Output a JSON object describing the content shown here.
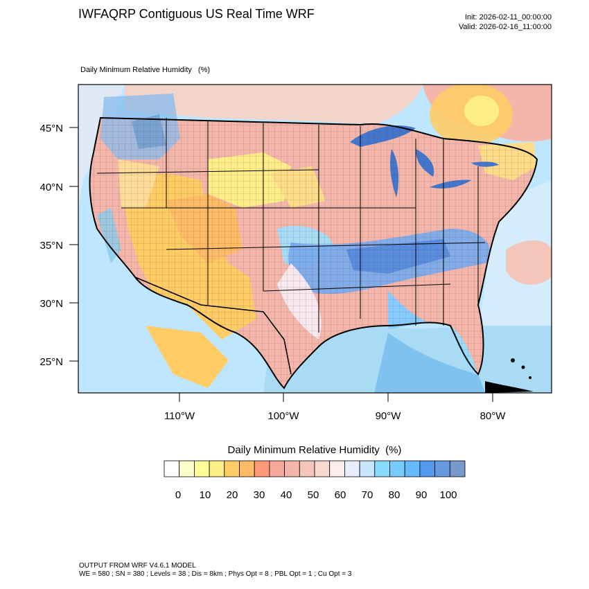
{
  "header": {
    "title": "IWFAQRP Contiguous US Real Time WRF",
    "init": "Init: 2026-02-11_00:00:00",
    "valid": "Valid: 2026-02-16_11:00:00",
    "subtitle": "Daily Minimum Relative Humidity   (%)"
  },
  "axes": {
    "lat_labels": [
      "45°N",
      "40°N",
      "35°N",
      "30°N",
      "25°N"
    ],
    "lon_labels": [
      "110°W",
      "100°W",
      "90°W",
      "80°W"
    ]
  },
  "colorbar": {
    "title": "Daily Minimum Relative Humidity  (%)",
    "colors": [
      "#ffffff",
      "#ffffcc",
      "#ffff99",
      "#ffee88",
      "#ffcc66",
      "#ffbb66",
      "#ff9977",
      "#f4a99a",
      "#f4b6aa",
      "#f4c6bb",
      "#f8d8d0",
      "#fdeeee",
      "#e6eeff",
      "#c8e6ff",
      "#88ddff",
      "#77ccff",
      "#66bbff",
      "#5599ee",
      "#6699dd",
      "#7799cc"
    ],
    "tick_labels": [
      "0",
      "10",
      "20",
      "30",
      "40",
      "50",
      "60",
      "70",
      "80",
      "90",
      "100"
    ]
  },
  "footer": {
    "line1": "OUTPUT FROM WRF V4.6.1 MODEL",
    "line2": "WE = 580 ; SN = 380 ; Levels = 38 ; Dis = 8km ; Phys Opt = 8 ; PBL Opt = 1 ; Cu Opt = 3"
  }
}
